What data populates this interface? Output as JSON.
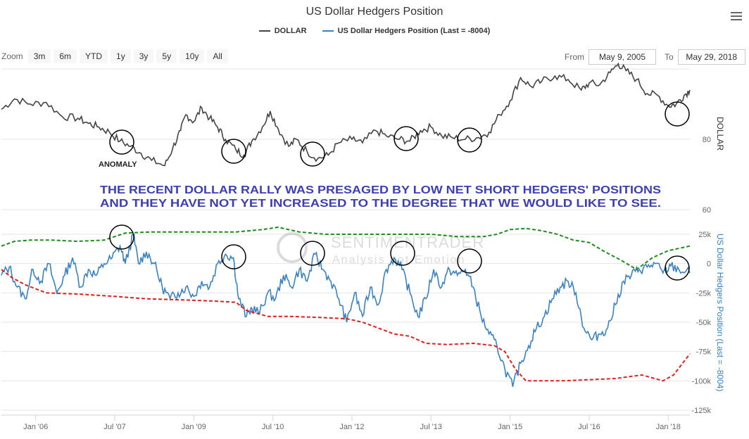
{
  "header": {
    "title": "US Dollar Hedgers Position"
  },
  "legend": [
    {
      "name": "DOLLAR",
      "color": "#434348"
    },
    {
      "name": "US Dollar Hedgers Position (Last = -8004)",
      "color": "#3a82c2"
    }
  ],
  "zoom": {
    "label": "Zoom",
    "buttons": [
      "3m",
      "6m",
      "YTD",
      "1y",
      "3y",
      "5y",
      "10y",
      "All"
    ]
  },
  "range": {
    "from_label": "From",
    "from_value": "May 9, 2005",
    "to_label": "To",
    "to_value": "May 29, 2018"
  },
  "watermark": {
    "name": "SENTIMENTRADER",
    "tagline": "Analysis not Emotion"
  },
  "annotations": {
    "anomaly": "ANOMALY",
    "message_line1": "THE RECENT DOLLAR RALLY WAS PRESAGED BY LOW NET SHORT HEDGERS' POSITIONS",
    "message_line2": "AND THEY HAVE NOT YET INCREASED TO THE DEGREE THAT WE WOULD LIKE TO SEE.",
    "circle_color": "#000000",
    "text_color": "#3f3fb4"
  },
  "chart_data": {
    "type": "line",
    "title": "US Dollar Hedgers Position",
    "x_tick_labels": [
      "Jan '06",
      "Jul '07",
      "Jan '09",
      "Jul '10",
      "Jan '12",
      "Jul '13",
      "Jan '15",
      "Jul '16",
      "Jan '18"
    ],
    "x_tick_years": [
      2006.0,
      2007.5,
      2009.0,
      2010.5,
      2012.0,
      2013.5,
      2015.0,
      2016.5,
      2018.0
    ],
    "x_range": [
      2005.35,
      2018.41
    ],
    "upper_panel": {
      "ylabel": "DOLLAR",
      "y_ticks": [
        60,
        80
      ],
      "ylim": [
        60,
        100
      ],
      "series": [
        {
          "name": "DOLLAR",
          "color": "#434348",
          "points": [
            [
              2005.35,
              88.5
            ],
            [
              2005.6,
              91.5
            ],
            [
              2005.9,
              90.0
            ],
            [
              2006.2,
              90.5
            ],
            [
              2006.5,
              86.5
            ],
            [
              2006.8,
              86.0
            ],
            [
              2007.0,
              84.5
            ],
            [
              2007.2,
              83.5
            ],
            [
              2007.4,
              82.0
            ],
            [
              2007.6,
              79.5
            ],
            [
              2007.8,
              78.0
            ],
            [
              2008.0,
              76.0
            ],
            [
              2008.2,
              74.0
            ],
            [
              2008.45,
              72.5
            ],
            [
              2008.6,
              77.5
            ],
            [
              2008.75,
              82.5
            ],
            [
              2008.85,
              87.0
            ],
            [
              2009.0,
              85.0
            ],
            [
              2009.15,
              89.0
            ],
            [
              2009.3,
              86.0
            ],
            [
              2009.45,
              83.5
            ],
            [
              2009.6,
              80.0
            ],
            [
              2009.8,
              77.0
            ],
            [
              2009.95,
              75.5
            ],
            [
              2010.1,
              79.5
            ],
            [
              2010.3,
              83.5
            ],
            [
              2010.45,
              88.0
            ],
            [
              2010.6,
              83.0
            ],
            [
              2010.8,
              78.0
            ],
            [
              2010.95,
              80.0
            ],
            [
              2011.15,
              76.5
            ],
            [
              2011.35,
              74.5
            ],
            [
              2011.55,
              75.5
            ],
            [
              2011.75,
              79.0
            ],
            [
              2012.0,
              80.0
            ],
            [
              2012.2,
              79.0
            ],
            [
              2012.45,
              82.5
            ],
            [
              2012.65,
              81.0
            ],
            [
              2012.9,
              80.0
            ],
            [
              2013.1,
              79.5
            ],
            [
              2013.3,
              82.5
            ],
            [
              2013.5,
              83.5
            ],
            [
              2013.7,
              81.0
            ],
            [
              2013.9,
              80.5
            ],
            [
              2014.15,
              80.0
            ],
            [
              2014.4,
              80.5
            ],
            [
              2014.6,
              82.0
            ],
            [
              2014.8,
              87.0
            ],
            [
              2015.0,
              91.0
            ],
            [
              2015.2,
              97.5
            ],
            [
              2015.4,
              95.0
            ],
            [
              2015.6,
              96.5
            ],
            [
              2015.85,
              98.0
            ],
            [
              2016.1,
              97.0
            ],
            [
              2016.35,
              94.0
            ],
            [
              2016.5,
              96.0
            ],
            [
              2016.7,
              95.5
            ],
            [
              2016.9,
              99.0
            ],
            [
              2017.05,
              101.5
            ],
            [
              2017.2,
              99.5
            ],
            [
              2017.4,
              97.0
            ],
            [
              2017.6,
              93.0
            ],
            [
              2017.8,
              92.5
            ],
            [
              2018.0,
              89.5
            ],
            [
              2018.15,
              90.0
            ],
            [
              2018.3,
              92.5
            ],
            [
              2018.41,
              94.0
            ]
          ]
        }
      ]
    },
    "lower_panel": {
      "ylabel": "US Dollar Hedgers Position (Last = -8004)",
      "y_ticks": [
        25000,
        0,
        -25000,
        -50000,
        -75000,
        -100000,
        -125000
      ],
      "y_tick_labels": [
        "25k",
        "0",
        "-25k",
        "-50k",
        "-75k",
        "-100k",
        "-125k"
      ],
      "ylim": [
        -125000,
        25000
      ],
      "series": [
        {
          "name": "US Dollar Hedgers Position (Last = -8004)",
          "color": "#3a82c2",
          "points": [
            [
              2005.35,
              -10000
            ],
            [
              2005.5,
              -3000
            ],
            [
              2005.65,
              -20000
            ],
            [
              2005.8,
              -30000
            ],
            [
              2005.95,
              -5000
            ],
            [
              2006.1,
              -15000
            ],
            [
              2006.25,
              0
            ],
            [
              2006.4,
              -25000
            ],
            [
              2006.55,
              -10000
            ],
            [
              2006.7,
              5000
            ],
            [
              2006.85,
              -20000
            ],
            [
              2007.0,
              -5000
            ],
            [
              2007.15,
              -10000
            ],
            [
              2007.3,
              0
            ],
            [
              2007.45,
              5000
            ],
            [
              2007.6,
              15000
            ],
            [
              2007.7,
              0
            ],
            [
              2007.85,
              25000
            ],
            [
              2007.95,
              0
            ],
            [
              2008.1,
              10000
            ],
            [
              2008.25,
              0
            ],
            [
              2008.4,
              -20000
            ],
            [
              2008.55,
              -30000
            ],
            [
              2008.7,
              -25000
            ],
            [
              2008.85,
              -20000
            ],
            [
              2009.0,
              -28000
            ],
            [
              2009.15,
              -15000
            ],
            [
              2009.3,
              -20000
            ],
            [
              2009.45,
              0
            ],
            [
              2009.6,
              8000
            ],
            [
              2009.75,
              5000
            ],
            [
              2009.85,
              -30000
            ],
            [
              2010.0,
              -45000
            ],
            [
              2010.1,
              -38000
            ],
            [
              2010.25,
              -42000
            ],
            [
              2010.4,
              -25000
            ],
            [
              2010.55,
              -30000
            ],
            [
              2010.7,
              -10000
            ],
            [
              2010.85,
              -20000
            ],
            [
              2011.0,
              -5000
            ],
            [
              2011.15,
              -15000
            ],
            [
              2011.3,
              8000
            ],
            [
              2011.45,
              -5000
            ],
            [
              2011.6,
              -15000
            ],
            [
              2011.75,
              -30000
            ],
            [
              2011.9,
              -50000
            ],
            [
              2012.05,
              -25000
            ],
            [
              2012.2,
              -45000
            ],
            [
              2012.35,
              -20000
            ],
            [
              2012.5,
              -35000
            ],
            [
              2012.65,
              -5000
            ],
            [
              2012.8,
              5000
            ],
            [
              2012.95,
              -5000
            ],
            [
              2013.1,
              -25000
            ],
            [
              2013.25,
              -45000
            ],
            [
              2013.4,
              -30000
            ],
            [
              2013.55,
              -5000
            ],
            [
              2013.7,
              -20000
            ],
            [
              2013.85,
              -5000
            ],
            [
              2014.0,
              -10000
            ],
            [
              2014.15,
              -5000
            ],
            [
              2014.3,
              -20000
            ],
            [
              2014.45,
              -45000
            ],
            [
              2014.6,
              -60000
            ],
            [
              2014.75,
              -70000
            ],
            [
              2014.9,
              -90000
            ],
            [
              2015.05,
              -105000
            ],
            [
              2015.2,
              -85000
            ],
            [
              2015.35,
              -70000
            ],
            [
              2015.5,
              -55000
            ],
            [
              2015.65,
              -45000
            ],
            [
              2015.8,
              -30000
            ],
            [
              2015.95,
              -20000
            ],
            [
              2016.1,
              -15000
            ],
            [
              2016.25,
              -25000
            ],
            [
              2016.4,
              -55000
            ],
            [
              2016.55,
              -65000
            ],
            [
              2016.7,
              -60000
            ],
            [
              2016.85,
              -55000
            ],
            [
              2017.0,
              -35000
            ],
            [
              2017.15,
              -15000
            ],
            [
              2017.3,
              -10000
            ],
            [
              2017.45,
              -5000
            ],
            [
              2017.6,
              -3000
            ],
            [
              2017.75,
              0
            ],
            [
              2017.9,
              -8000
            ],
            [
              2018.05,
              -2000
            ],
            [
              2018.2,
              -5000
            ],
            [
              2018.41,
              -8004
            ]
          ]
        },
        {
          "name": "",
          "color": "#1e8c1e",
          "dashed": true,
          "points": [
            [
              2005.35,
              15000
            ],
            [
              2005.6,
              19000
            ],
            [
              2005.9,
              20000
            ],
            [
              2006.3,
              20000
            ],
            [
              2006.8,
              19000
            ],
            [
              2007.3,
              20000
            ],
            [
              2007.7,
              26000
            ],
            [
              2008.2,
              27000
            ],
            [
              2008.8,
              27000
            ],
            [
              2009.3,
              27000
            ],
            [
              2009.8,
              27000
            ],
            [
              2010.3,
              29000
            ],
            [
              2010.6,
              31000
            ],
            [
              2011.0,
              27000
            ],
            [
              2011.5,
              25000
            ],
            [
              2012.0,
              25000
            ],
            [
              2012.5,
              25000
            ],
            [
              2013.0,
              25000
            ],
            [
              2013.5,
              25000
            ],
            [
              2014.0,
              23000
            ],
            [
              2014.5,
              23000
            ],
            [
              2014.75,
              25000
            ],
            [
              2015.0,
              29000
            ],
            [
              2015.3,
              30000
            ],
            [
              2015.6,
              28000
            ],
            [
              2015.9,
              25000
            ],
            [
              2016.2,
              20000
            ],
            [
              2016.5,
              18000
            ],
            [
              2016.8,
              10000
            ],
            [
              2017.1,
              3000
            ],
            [
              2017.4,
              -5000
            ],
            [
              2017.7,
              5000
            ],
            [
              2018.0,
              11000
            ],
            [
              2018.41,
              15000
            ]
          ]
        },
        {
          "name": "",
          "color": "#e02020",
          "dashed": true,
          "points": [
            [
              2005.35,
              -5000
            ],
            [
              2005.55,
              -12000
            ],
            [
              2005.8,
              -18000
            ],
            [
              2006.2,
              -25000
            ],
            [
              2006.8,
              -26000
            ],
            [
              2007.5,
              -28000
            ],
            [
              2008.1,
              -30000
            ],
            [
              2008.8,
              -31000
            ],
            [
              2009.4,
              -32000
            ],
            [
              2009.8,
              -33000
            ],
            [
              2010.0,
              -40000
            ],
            [
              2010.4,
              -45000
            ],
            [
              2010.8,
              -45000
            ],
            [
              2011.4,
              -46000
            ],
            [
              2011.9,
              -47000
            ],
            [
              2012.2,
              -50000
            ],
            [
              2012.5,
              -55000
            ],
            [
              2012.8,
              -60000
            ],
            [
              2013.1,
              -62000
            ],
            [
              2013.4,
              -68000
            ],
            [
              2013.8,
              -69000
            ],
            [
              2014.3,
              -68000
            ],
            [
              2014.7,
              -70000
            ],
            [
              2014.9,
              -75000
            ],
            [
              2015.1,
              -90000
            ],
            [
              2015.3,
              -100000
            ],
            [
              2015.6,
              -100000
            ],
            [
              2016.0,
              -100000
            ],
            [
              2016.5,
              -99000
            ],
            [
              2017.0,
              -98000
            ],
            [
              2017.5,
              -95000
            ],
            [
              2017.9,
              -100000
            ],
            [
              2018.1,
              -95000
            ],
            [
              2018.41,
              -77000
            ]
          ]
        }
      ]
    },
    "grid": true,
    "legend_position": "top-center"
  }
}
